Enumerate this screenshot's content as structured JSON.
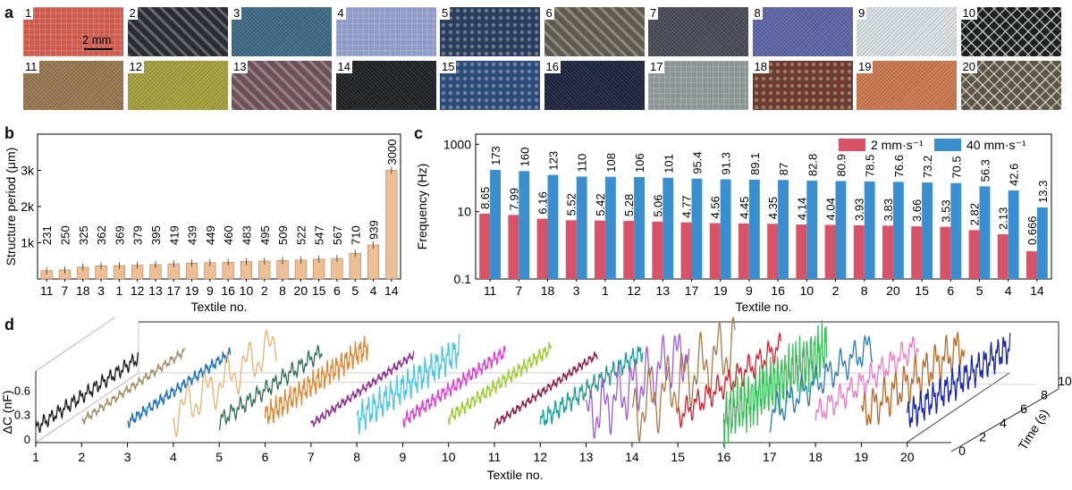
{
  "panel_labels": {
    "a": "a",
    "b": "b",
    "c": "c",
    "d": "d"
  },
  "panel_a": {
    "scale_bar_label": "2 mm",
    "tiles": [
      {
        "no": "1",
        "color": "#cf5a4c",
        "pattern": "grid"
      },
      {
        "no": "2",
        "color": "#2a2d33",
        "pattern": "diagonal"
      },
      {
        "no": "3",
        "color": "#3f6c86",
        "pattern": "fine"
      },
      {
        "no": "4",
        "color": "#8f9ac9",
        "pattern": "grid"
      },
      {
        "no": "5",
        "color": "#2b3d5c",
        "pattern": "dots"
      },
      {
        "no": "6",
        "color": "#5e5a50",
        "pattern": "diagonal"
      },
      {
        "no": "7",
        "color": "#4a4d58",
        "pattern": "fine"
      },
      {
        "no": "8",
        "color": "#5f67a8",
        "pattern": "fine"
      },
      {
        "no": "9",
        "color": "#dce2e6",
        "pattern": "fine"
      },
      {
        "no": "10",
        "color": "#1f2024",
        "pattern": "net"
      },
      {
        "no": "11",
        "color": "#9b7a52",
        "pattern": "fine"
      },
      {
        "no": "12",
        "color": "#a8a33c",
        "pattern": "fine"
      },
      {
        "no": "13",
        "color": "#6e5158",
        "pattern": "diagonal"
      },
      {
        "no": "14",
        "color": "#1f2326",
        "pattern": "fine"
      },
      {
        "no": "15",
        "color": "#2c4b78",
        "pattern": "dots"
      },
      {
        "no": "16",
        "color": "#1f2540",
        "pattern": "fine"
      },
      {
        "no": "17",
        "color": "#8c9496",
        "pattern": "grid"
      },
      {
        "no": "18",
        "color": "#6b3c2e",
        "pattern": "dots"
      },
      {
        "no": "19",
        "color": "#cf7a50",
        "pattern": "fine"
      },
      {
        "no": "20",
        "color": "#5d5648",
        "pattern": "net"
      }
    ]
  },
  "chart_data": [
    {
      "id": "b",
      "type": "bar",
      "ylabel": "Structure period (μm)",
      "xlabel": "Textile no.",
      "ylim": [
        0,
        4000
      ],
      "ytick_values": [
        1000,
        2000,
        3000
      ],
      "ytick_labels": [
        "1k",
        "2k",
        "3k"
      ],
      "bar_color": "#edbf94",
      "categories": [
        "11",
        "7",
        "18",
        "3",
        "1",
        "12",
        "13",
        "17",
        "19",
        "9",
        "16",
        "10",
        "2",
        "8",
        "20",
        "15",
        "6",
        "5",
        "4",
        "14"
      ],
      "values": [
        231,
        250,
        325,
        362,
        369,
        379,
        395,
        419,
        439,
        449,
        460,
        483,
        495,
        509,
        522,
        547,
        567,
        710,
        939,
        3000
      ],
      "labels": [
        "231",
        "250",
        "325",
        "362",
        "369",
        "379",
        "395",
        "419",
        "439",
        "449",
        "460",
        "483",
        "495",
        "509",
        "522",
        "547",
        "567",
        "710",
        "939",
        "3000"
      ]
    },
    {
      "id": "c",
      "type": "bar",
      "yscale": "log",
      "ylabel": "Frequency (Hz)",
      "xlabel": "Textile no.",
      "ylim": [
        0.1,
        2000
      ],
      "ytick_values": [
        0.1,
        10,
        1000
      ],
      "ytick_labels": [
        "0.1",
        "10",
        "1000"
      ],
      "legend_position": "top-right",
      "categories": [
        "11",
        "7",
        "18",
        "3",
        "1",
        "12",
        "13",
        "17",
        "19",
        "9",
        "16",
        "10",
        "2",
        "8",
        "20",
        "15",
        "6",
        "5",
        "4",
        "14"
      ],
      "series": [
        {
          "name": "2 mm·s⁻¹",
          "color": "#d95368",
          "values": [
            8.65,
            7.99,
            6.16,
            5.52,
            5.42,
            5.28,
            5.06,
            4.77,
            4.56,
            4.45,
            4.35,
            4.14,
            4.04,
            3.93,
            3.83,
            3.66,
            3.53,
            2.82,
            2.13,
            0.666
          ],
          "labels": [
            "8.65",
            "7.99",
            "6.16",
            "5.52",
            "5.42",
            "5.28",
            "5.06",
            "4.77",
            "4.56",
            "4.45",
            "4.35",
            "4.14",
            "4.04",
            "3.93",
            "3.83",
            "3.66",
            "3.53",
            "2.82",
            "2.13",
            "0.666"
          ]
        },
        {
          "name": "40 mm·s⁻¹",
          "color": "#3b8fcf",
          "values": [
            173,
            160,
            123,
            110,
            108,
            106,
            101,
            95.4,
            91.3,
            89.1,
            87,
            82.8,
            80.9,
            78.5,
            76.6,
            73.2,
            70.5,
            56.3,
            42.6,
            13.3
          ],
          "labels": [
            "173",
            "160",
            "123",
            "110",
            "108",
            "106",
            "101",
            "95.4",
            "91.3",
            "89.1",
            "87",
            "82.8",
            "80.9",
            "78.5",
            "76.6",
            "73.2",
            "70.5",
            "56.3",
            "42.6",
            "13.3"
          ]
        }
      ]
    },
    {
      "id": "d",
      "type": "line",
      "projection": "3d",
      "ylabel": "ΔC (nF)",
      "xlabel": "Textile no.",
      "zlabel": "Time (s)",
      "yticks": [
        "0.6",
        "0.3",
        "0"
      ],
      "xticks": [
        "1",
        "2",
        "3",
        "4",
        "5",
        "6",
        "7",
        "8",
        "9",
        "10",
        "11",
        "12",
        "13",
        "14",
        "15",
        "16",
        "17",
        "18",
        "19",
        "20"
      ],
      "zticks": [
        "0",
        "2",
        "4",
        "6",
        "8",
        "10"
      ],
      "series": [
        {
          "textile": "1",
          "color": "#1a1a1a",
          "amplitude": 0.1,
          "cycles": 14
        },
        {
          "textile": "2",
          "color": "#9c8a62",
          "amplitude": 0.06,
          "cycles": 16
        },
        {
          "textile": "3",
          "color": "#1b6fc2",
          "amplitude": 0.08,
          "cycles": 18
        },
        {
          "textile": "4",
          "color": "#eab26e",
          "amplitude": 0.3,
          "cycles": 5
        },
        {
          "textile": "5",
          "color": "#2f6e58",
          "amplitude": 0.12,
          "cycles": 12
        },
        {
          "textile": "6",
          "color": "#e08a36",
          "amplitude": 0.18,
          "cycles": 22
        },
        {
          "textile": "7",
          "color": "#8a2d8a",
          "amplitude": 0.06,
          "cycles": 20
        },
        {
          "textile": "8",
          "color": "#4ec7e6",
          "amplitude": 0.22,
          "cycles": 18
        },
        {
          "textile": "9",
          "color": "#e03ecf",
          "amplitude": 0.1,
          "cycles": 20
        },
        {
          "textile": "10",
          "color": "#9acd2f",
          "amplitude": 0.1,
          "cycles": 20
        },
        {
          "textile": "11",
          "color": "#8c1f4a",
          "amplitude": 0.06,
          "cycles": 20
        },
        {
          "textile": "12",
          "color": "#1f9e9a",
          "amplitude": 0.14,
          "cycles": 16
        },
        {
          "textile": "13",
          "color": "#9a5fd6",
          "amplitude": 0.4,
          "cycles": 7
        },
        {
          "textile": "14",
          "color": "#a97a45",
          "amplitude": 0.45,
          "cycles": 6
        },
        {
          "textile": "15",
          "color": "#d61f2c",
          "amplitude": 0.18,
          "cycles": 10
        },
        {
          "textile": "16",
          "color": "#3ac05a",
          "amplitude": 0.4,
          "cycles": 28
        },
        {
          "textile": "17",
          "color": "#2a79b5",
          "amplitude": 0.22,
          "cycles": 8
        },
        {
          "textile": "18",
          "color": "#ee7cc0",
          "amplitude": 0.18,
          "cycles": 10
        },
        {
          "textile": "19",
          "color": "#b56a2a",
          "amplitude": 0.28,
          "cycles": 10
        },
        {
          "textile": "20",
          "color": "#1e2aa6",
          "amplitude": 0.22,
          "cycles": 16
        }
      ]
    }
  ]
}
